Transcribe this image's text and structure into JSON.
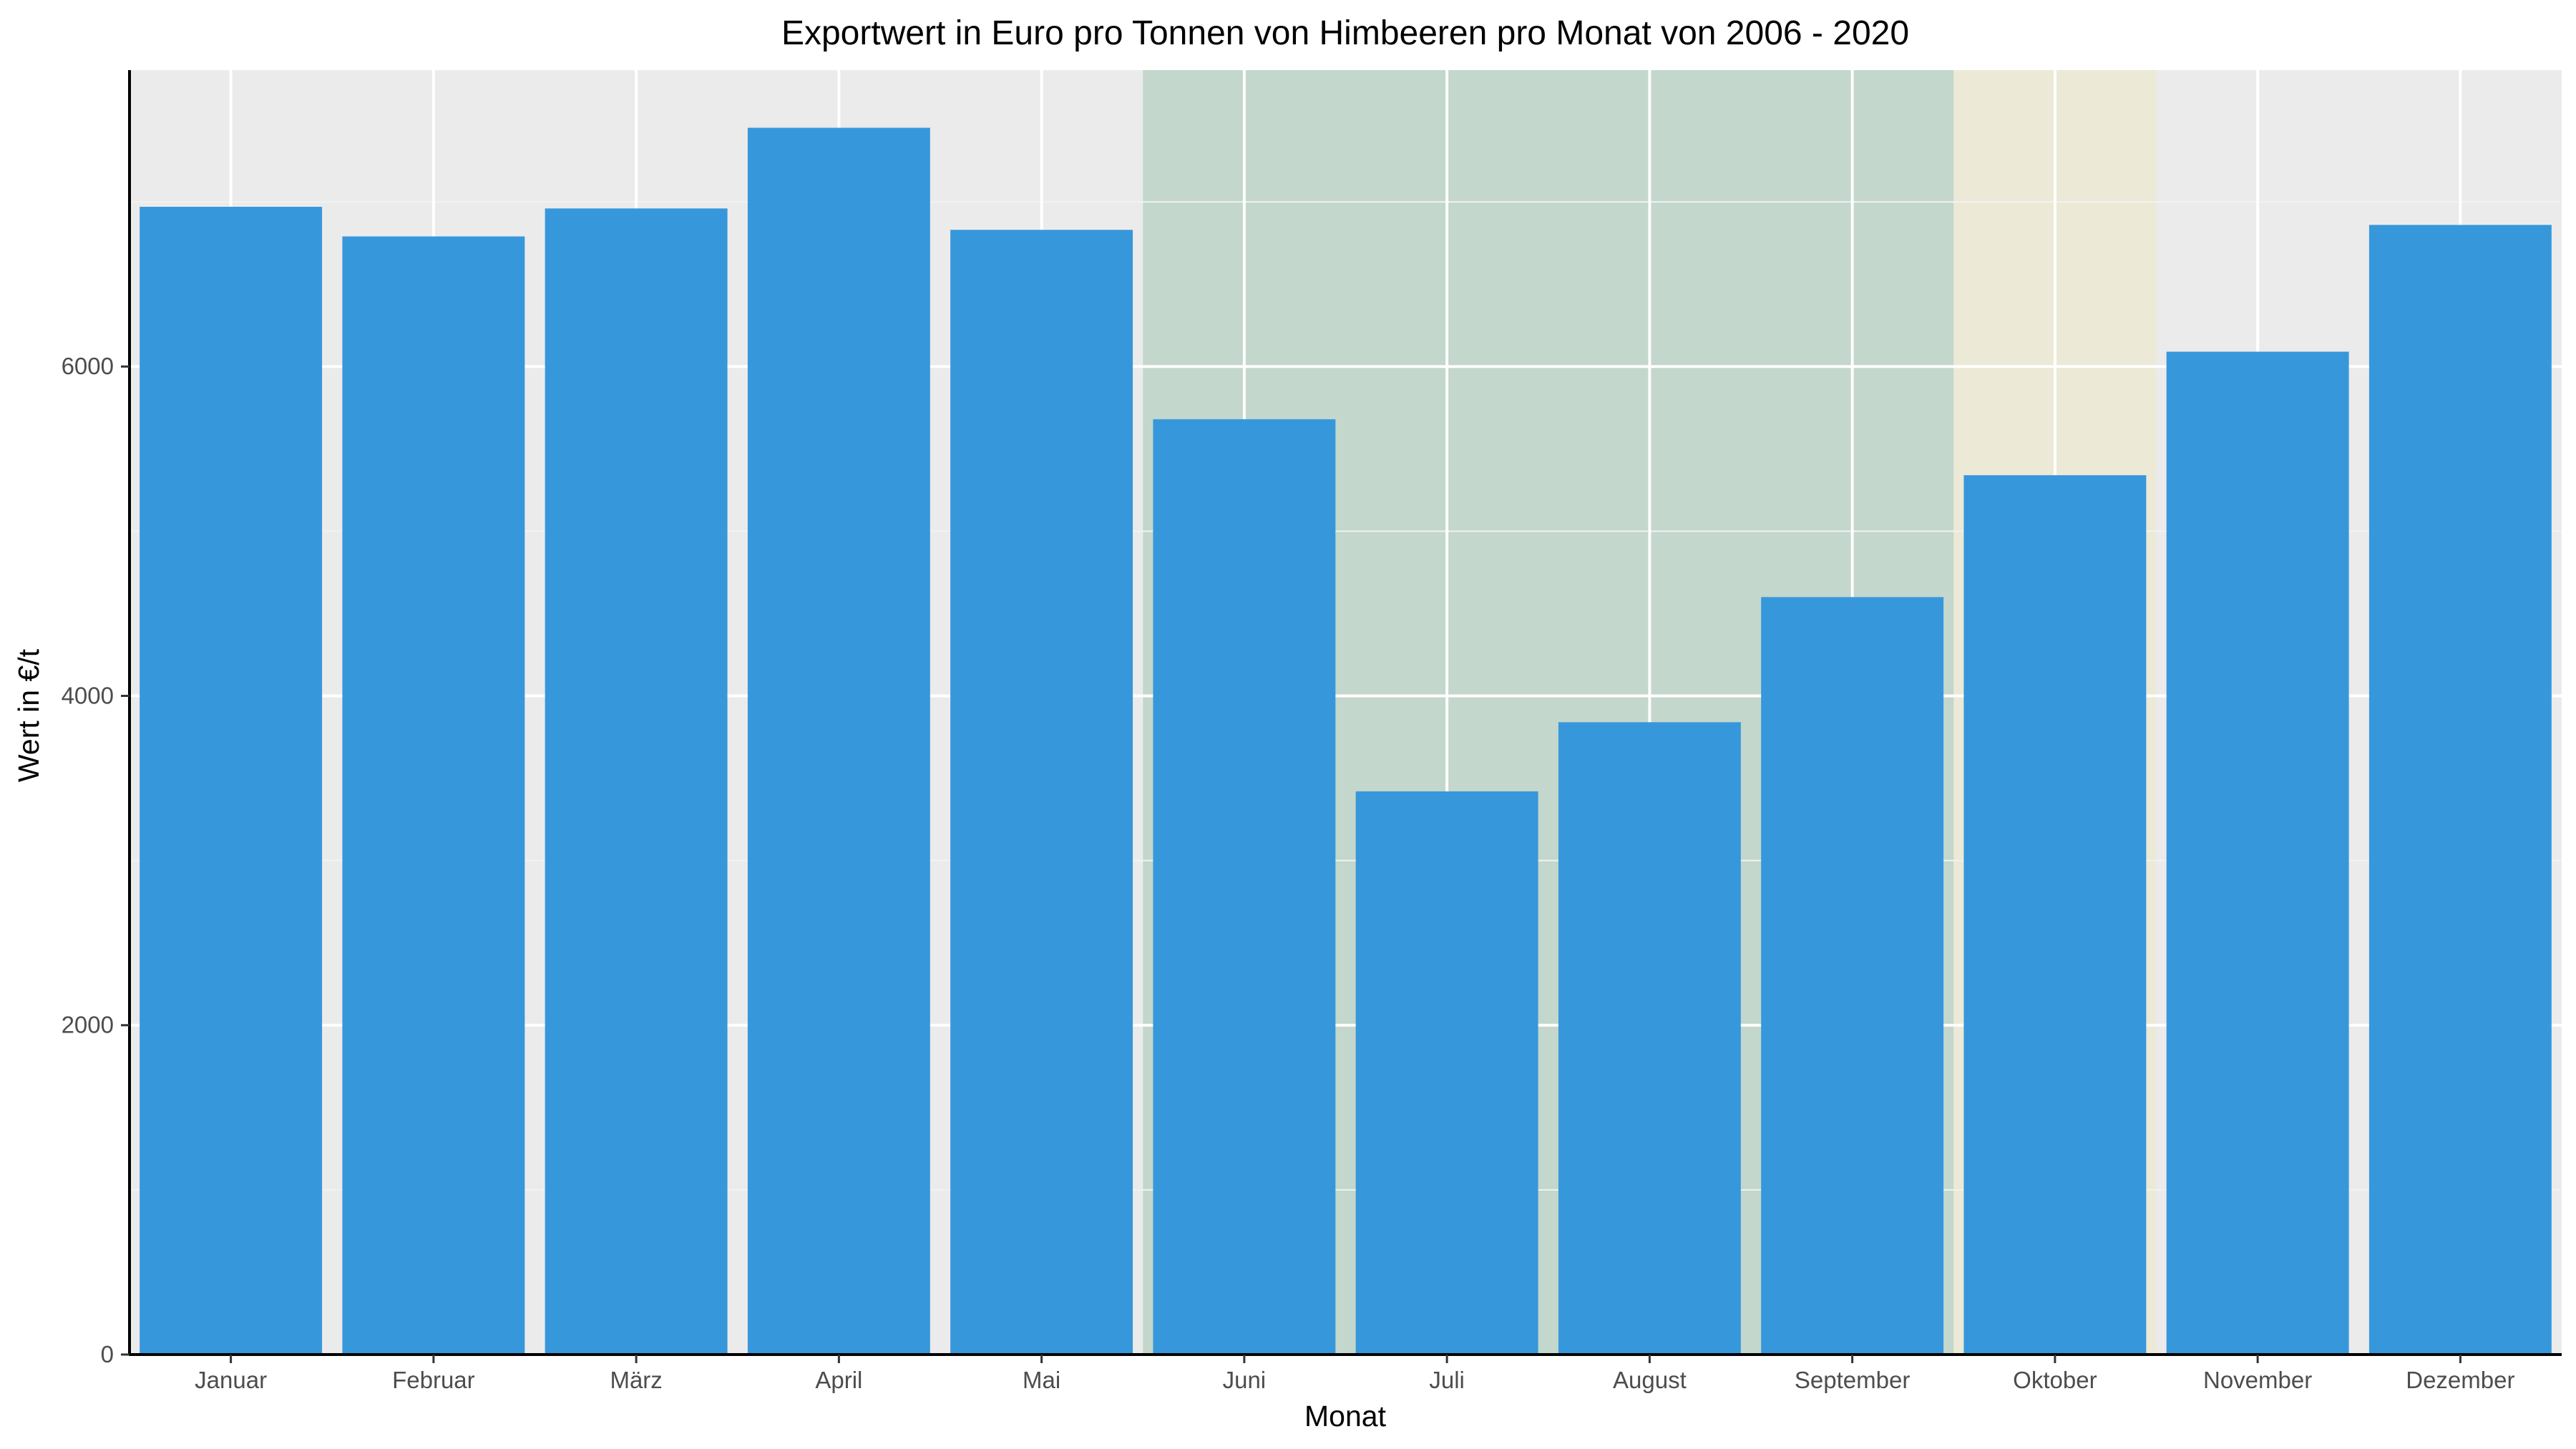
{
  "chart_data": {
    "type": "bar",
    "title": "Exportwert in Euro pro Tonnen von Himbeeren pro Monat von 2006 - 2020",
    "xlabel": "Monat",
    "ylabel": "Wert in €/t",
    "categories": [
      "Januar",
      "Februar",
      "März",
      "April",
      "Mai",
      "Juni",
      "Juli",
      "August",
      "September",
      "Oktober",
      "November",
      "Dezember"
    ],
    "values": [
      6970,
      6790,
      6960,
      7450,
      6830,
      5680,
      3420,
      3840,
      4600,
      5340,
      6090,
      6860
    ],
    "ylim": [
      0,
      7800
    ],
    "yticks": [
      0,
      2000,
      4000,
      6000
    ],
    "grid": true,
    "legend": "none",
    "highlight_bands": [
      {
        "from_category": "Juni",
        "to_category": "September",
        "color": "#c3d7cc"
      },
      {
        "from_category": "Oktober",
        "to_category": "Oktober",
        "color": "#ece9d6"
      }
    ],
    "colors": {
      "bar": "#3797db",
      "panel_background": "#ebebeb",
      "grid_major": "#ffffff",
      "grid_minor": "#f2f2f2",
      "axis_line": "#000000"
    }
  }
}
